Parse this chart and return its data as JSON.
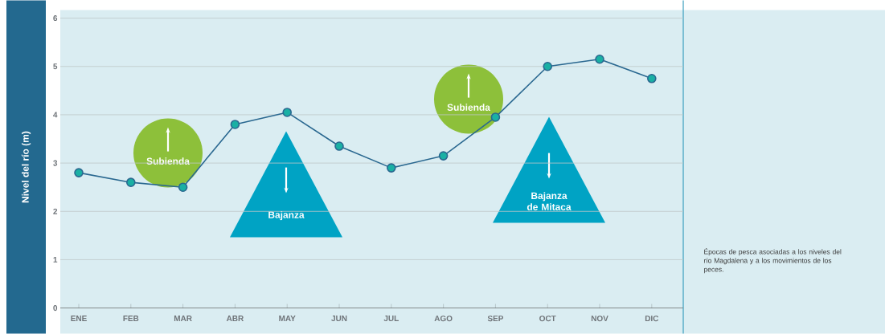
{
  "chart_data": {
    "type": "line",
    "ylabel": "Nivel del río (m)",
    "categories": [
      "ENE",
      "FEB",
      "MAR",
      "ABR",
      "MAY",
      "JUN",
      "JUL",
      "AGO",
      "SEP",
      "OCT",
      "NOV",
      "DIC"
    ],
    "series": [
      {
        "color": "#2a6890",
        "values": [
          2.8,
          2.6,
          2.5,
          3.8,
          4.05,
          3.35,
          2.9,
          3.15,
          3.95,
          5.0,
          5.15,
          4.75
        ]
      }
    ],
    "ylim": [
      0,
      6
    ],
    "yticks": [
      0,
      1,
      2,
      3,
      4,
      5,
      6
    ],
    "grid": "y",
    "marker": "circle",
    "annotations": [
      "Subienda",
      "Bajanza",
      "Subienda",
      "Bajanza de Mitaca",
      "Épocas de pesca asociadas a los niveles del río Magdalena y a los movimientos de los peces."
    ]
  }
}
